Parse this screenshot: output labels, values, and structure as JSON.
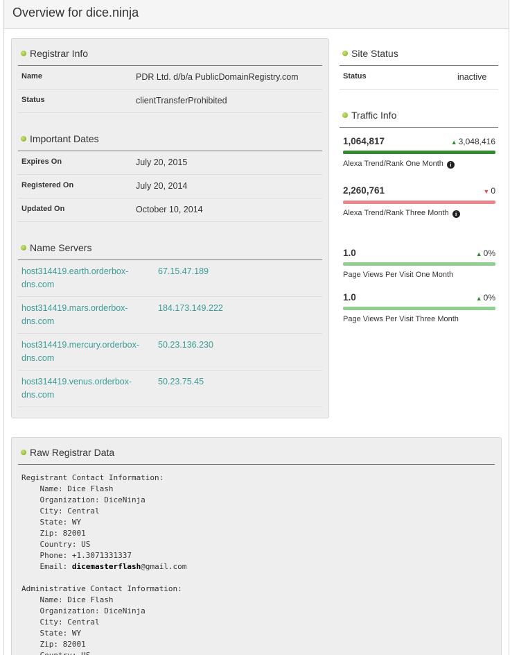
{
  "page": {
    "title": "Overview for dice.ninja"
  },
  "registrar": {
    "title": "Registrar Info",
    "rows": [
      {
        "label": "Name",
        "value": "PDR Ltd. d/b/a PublicDomainRegistry.com"
      },
      {
        "label": "Status",
        "value": "clientTransferProhibited"
      }
    ]
  },
  "dates": {
    "title": "Important Dates",
    "rows": [
      {
        "label": "Expires On",
        "value": "July 20, 2015"
      },
      {
        "label": "Registered On",
        "value": "July 20, 2014"
      },
      {
        "label": "Updated On",
        "value": "October 10, 2014"
      }
    ]
  },
  "nameservers": {
    "title": "Name Servers",
    "rows": [
      {
        "host1": "host314419.earth.orderbox-",
        "host2": "dns.com",
        "ip": "67.15.47.189"
      },
      {
        "host1": "host314419.mars.orderbox-",
        "host2": "dns.com",
        "ip": "184.173.149.222"
      },
      {
        "host1": "host314419.mercury.orderbox-",
        "host2": "dns.com",
        "ip": "50.23.136.230"
      },
      {
        "host1": "host314419.venus.orderbox-",
        "host2": "dns.com",
        "ip": "50.23.75.45"
      }
    ]
  },
  "site_status": {
    "title": "Site Status",
    "label": "Status",
    "value": "inactive"
  },
  "traffic": {
    "title": "Traffic Info",
    "items": [
      {
        "value": "1,064,817",
        "delta": "3,048,416",
        "direction": "up",
        "bar_color": "#2e8b2e",
        "caption": "Alexa Trend/Rank One Month",
        "info": true
      },
      {
        "value": "2,260,761",
        "delta": "0",
        "direction": "down",
        "bar_color": "#e8858a",
        "caption": "Alexa Trend/Rank Three Month",
        "info": true
      },
      {
        "value": "1.0",
        "delta": "0%",
        "direction": "up",
        "bar_color": "#8fcf8f",
        "caption": "Page Views Per Visit One Month",
        "info": false
      },
      {
        "value": "1.0",
        "delta": "0%",
        "direction": "up",
        "bar_color": "#8fcf8f",
        "caption": "Page Views Per Visit Three Month",
        "info": false
      }
    ],
    "info_glyph": "i"
  },
  "raw": {
    "title": "Raw Registrar Data",
    "text_before_email": "Registrant Contact Information:\n    Name: Dice Flash\n    Organization: DiceNinja\n    City: Central\n    State: WY\n    Zip: 82001\n    Country: US\n    Phone: +1.3071331337\n    Email: ",
    "email_user": "dicemasterflash",
    "email_domain": "@gmail.com",
    "text_after_email": "\n\nAdministrative Contact Information:\n    Name: Dice Flash\n    Organization: DiceNinja\n    City: Central\n    State: WY\n    Zip: 82001\n    Country: US"
  },
  "colors": {
    "accent_link": "#3a9c96",
    "bullet": "#8ab82e",
    "up": "#2e8b2e",
    "down": "#d9534f"
  }
}
